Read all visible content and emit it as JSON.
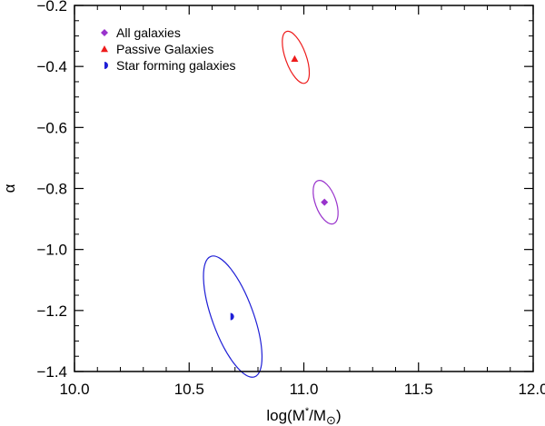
{
  "chart_data": {
    "type": "scatter",
    "xlabel_main": "log(M",
    "xlabel_sup": "*",
    "xlabel_rest": "/M",
    "xlabel_sub": "⊙",
    "xlabel_close": ")",
    "ylabel": "α",
    "xlim": [
      10.0,
      12.0
    ],
    "ylim": [
      -1.4,
      -0.2
    ],
    "x_ticks": [
      10.0,
      10.5,
      11.0,
      11.5,
      12.0
    ],
    "x_tick_labels": [
      "10.0",
      "10.5",
      "11.0",
      "11.5",
      "12.0"
    ],
    "y_ticks": [
      -1.4,
      -1.2,
      -1.0,
      -0.8,
      -0.6,
      -0.4,
      -0.2
    ],
    "y_tick_labels": [
      "−1.4",
      "−1.2",
      "−1.0",
      "−0.8",
      "−0.6",
      "−0.4",
      "−0.2"
    ],
    "grid": false,
    "legend_position": "top-left",
    "series": [
      {
        "name": "All galaxies",
        "marker": "diamond",
        "color": "#9933cc",
        "x": 11.09,
        "y": -0.845,
        "ellipse": {
          "cx": 11.095,
          "cy": -0.845,
          "rx": 0.045,
          "ry": 0.075,
          "rotation_deg": -20
        }
      },
      {
        "name": "Passive Galaxies",
        "marker": "triangle",
        "color": "#ee1c1c",
        "x": 10.96,
        "y": -0.375,
        "ellipse": {
          "cx": 10.965,
          "cy": -0.37,
          "rx": 0.045,
          "ry": 0.09,
          "rotation_deg": -20
        }
      },
      {
        "name": "Star forming galaxies",
        "marker": "halfcircle",
        "color": "#1f1fd6",
        "x": 10.68,
        "y": -1.22,
        "ellipse": {
          "cx": 10.69,
          "cy": -1.22,
          "rx": 0.09,
          "ry": 0.21,
          "rotation_deg": -20
        }
      }
    ]
  }
}
